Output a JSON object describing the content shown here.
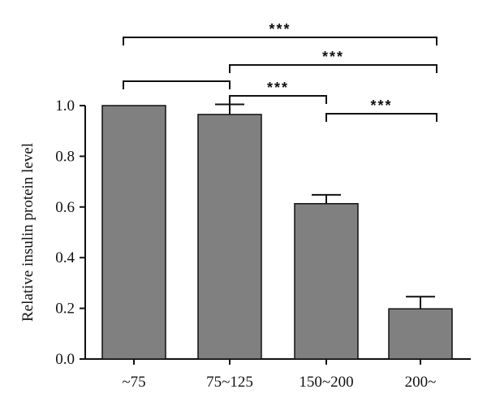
{
  "chart_data": {
    "type": "bar",
    "title": "",
    "xlabel": "",
    "ylabel": "Relative insulin protein level",
    "categories": [
      "~75",
      "75~125",
      "150~200",
      "200~"
    ],
    "values": [
      1.0,
      0.965,
      0.613,
      0.198
    ],
    "errors": [
      0.0,
      0.04,
      0.035,
      0.048
    ],
    "ylim": [
      0.0,
      1.0
    ],
    "yticks": [
      "0.0",
      "0.2",
      "0.4",
      "0.6",
      "0.8",
      "1.0"
    ],
    "bar_color": "#808080",
    "grid": false,
    "significance": [
      {
        "from": 0,
        "to": 3,
        "label": "***"
      },
      {
        "from": 1,
        "to": 3,
        "label": "***"
      },
      {
        "from": 0,
        "to": 1,
        "label": ""
      },
      {
        "from": 1,
        "to": 2,
        "label": "***"
      },
      {
        "from": 2,
        "to": 3,
        "label": "***"
      }
    ]
  }
}
